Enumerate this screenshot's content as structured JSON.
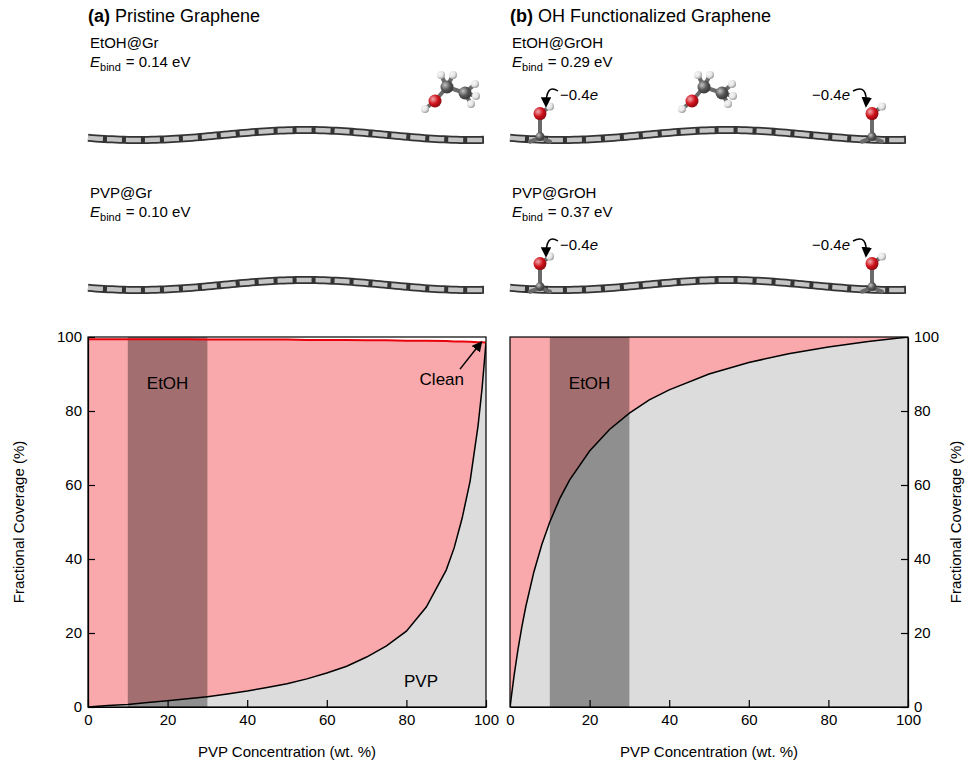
{
  "chart_data": [
    {
      "type": "area",
      "stacked": true,
      "title": "(a) Pristine Graphene",
      "x_label": "PVP Concentration (wt. %)",
      "y_label": "Fractional Coverage (%)",
      "x": [
        0,
        5,
        10,
        15,
        20,
        25,
        30,
        35,
        40,
        45,
        50,
        55,
        60,
        65,
        70,
        75,
        80,
        85,
        90,
        92,
        94,
        96,
        98,
        99,
        100
      ],
      "series": [
        {
          "name": "PVP",
          "color": "#dcdcdc",
          "values": [
            0,
            0.4,
            0.7,
            1.2,
            1.7,
            2.2,
            2.8,
            3.5,
            4.3,
            5.3,
            6.3,
            7.6,
            9.2,
            11,
            13.5,
            16.5,
            20.5,
            27,
            37,
            43,
            51,
            61,
            76,
            86,
            98.5
          ]
        },
        {
          "name": "EtOH",
          "color": "#f9a9ab",
          "values": [
            99.4,
            99.0,
            98.7,
            98.2,
            97.7,
            97.2,
            96.5,
            95.8,
            95.0,
            94.0,
            93.0,
            91.6,
            90.0,
            88.2,
            85.6,
            82.6,
            78.5,
            72.0,
            61.9,
            55.8,
            47.8,
            37.7,
            22.6,
            12.6,
            0
          ]
        },
        {
          "name": "Clean",
          "color": "#ffffff",
          "values": [
            0.6,
            0.6,
            0.6,
            0.6,
            0.6,
            0.6,
            0.7,
            0.7,
            0.7,
            0.7,
            0.7,
            0.8,
            0.8,
            0.8,
            0.9,
            0.9,
            1.0,
            1.0,
            1.1,
            1.2,
            1.2,
            1.3,
            1.4,
            1.4,
            1.5
          ]
        }
      ],
      "highlight_range": [
        10,
        30
      ],
      "xlim": [
        0,
        100
      ],
      "ylim": [
        0,
        100
      ],
      "xticks": [
        0,
        20,
        40,
        60,
        80,
        100
      ],
      "yticks": [
        0,
        20,
        40,
        60,
        80,
        100
      ]
    },
    {
      "type": "area",
      "stacked": true,
      "title": "(b) OH Functionalized Graphene",
      "x_label": "PVP Concentration (wt. %)",
      "y_label": "Fractional Coverage (%)",
      "x": [
        0,
        1,
        2,
        3,
        4,
        6,
        8,
        10,
        12.5,
        15,
        20,
        25,
        30,
        35,
        40,
        50,
        60,
        70,
        80,
        90,
        100
      ],
      "series": [
        {
          "color": "#dcdcdc",
          "values": [
            0,
            8.3,
            15.5,
            21.8,
            27.3,
            36.5,
            43.9,
            50,
            56.3,
            61.4,
            69.2,
            75,
            79.4,
            83.0,
            85.7,
            90,
            93.1,
            95.5,
            97.3,
            98.8,
            100
          ]
        },
        {
          "name": "EtOH",
          "color": "#f9a9ab",
          "values": [
            100,
            91.7,
            84.5,
            78.2,
            72.7,
            63.5,
            56.1,
            50,
            43.7,
            38.6,
            30.8,
            25,
            20.6,
            17.0,
            14.3,
            10,
            6.9,
            4.5,
            2.7,
            1.2,
            0
          ]
        }
      ],
      "highlight_range": [
        10,
        30
      ],
      "xlim": [
        0,
        100
      ],
      "ylim": [
        0,
        100
      ],
      "xticks": [
        0,
        20,
        40,
        60,
        80,
        100
      ],
      "yticks": [
        0,
        20,
        40,
        60,
        80,
        100
      ]
    }
  ],
  "illustrations": [
    {
      "systems": [
        {
          "name": "EtOH@Gr",
          "symbol": "E",
          "subscript": "bind",
          "energy_text": "= 0.14 eV"
        },
        {
          "name": "PVP@Gr",
          "symbol": "E",
          "subscript": "bind",
          "energy_text": "= 0.10 eV"
        }
      ]
    },
    {
      "systems": [
        {
          "name": "EtOH@GrOH",
          "symbol": "E",
          "subscript": "bind",
          "energy_text": "= 0.29 eV",
          "charges": [
            {
              "value": "−0.4",
              "unit": "e"
            },
            {
              "value": "−0.4",
              "unit": "e"
            }
          ]
        },
        {
          "name": "PVP@GrOH",
          "symbol": "E",
          "subscript": "bind",
          "energy_text": "= 0.37 eV",
          "charges": [
            {
              "value": "−0.4",
              "unit": "e"
            },
            {
              "value": "−0.4",
              "unit": "e"
            }
          ]
        }
      ]
    }
  ]
}
